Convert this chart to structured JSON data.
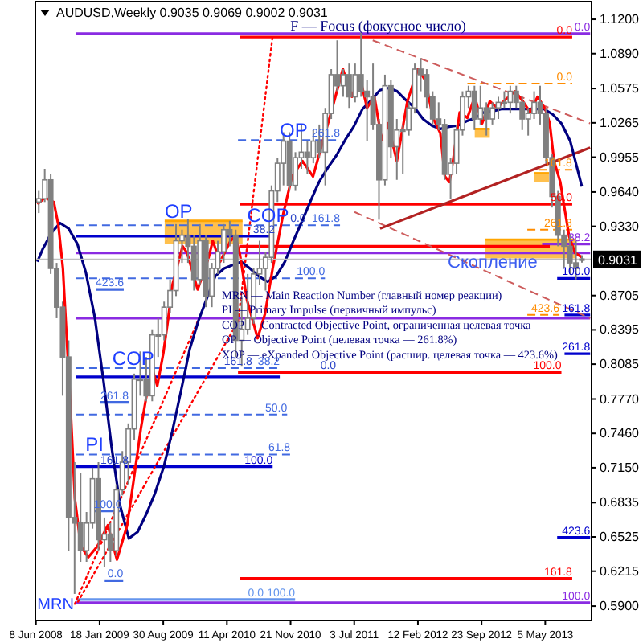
{
  "chart_data": {
    "type": "candlestick",
    "title": "AUDUSD,Weekly 0.9035 0.9069 0.9002 0.9031",
    "color": "#808080",
    "x": [
      "2008-06-18",
      "2008-07-09",
      "2008-07-30",
      "2008-08-20",
      "2008-09-10",
      "2008-10-01",
      "2008-10-22",
      "2008-11-12",
      "2008-12-03",
      "2008-12-24",
      "2009-01-14",
      "2009-02-04",
      "2009-02-25",
      "2009-03-18",
      "2009-04-08",
      "2009-04-29",
      "2009-05-20",
      "2009-06-10",
      "2009-07-01",
      "2009-07-22",
      "2009-08-12",
      "2009-09-02",
      "2009-09-23",
      "2009-10-14",
      "2009-11-04",
      "2009-11-25",
      "2009-12-16",
      "2010-01-06",
      "2010-01-27",
      "2010-02-17",
      "2010-03-10",
      "2010-03-31",
      "2010-04-21",
      "2010-05-12",
      "2010-06-02",
      "2010-06-23",
      "2010-07-14",
      "2010-08-04",
      "2010-08-25",
      "2010-09-15",
      "2010-10-06",
      "2010-10-27",
      "2010-11-17",
      "2010-12-08",
      "2010-12-29",
      "2011-01-19",
      "2011-02-09",
      "2011-03-02",
      "2011-03-23",
      "2011-04-13",
      "2011-05-04",
      "2011-05-25",
      "2011-06-15",
      "2011-07-06",
      "2011-07-27",
      "2011-08-17",
      "2011-09-07",
      "2011-09-28",
      "2011-10-19",
      "2011-11-09",
      "2011-11-30",
      "2011-12-21",
      "2012-01-11",
      "2012-02-01",
      "2012-02-22",
      "2012-03-14",
      "2012-04-04",
      "2012-04-25",
      "2012-05-16",
      "2012-06-06",
      "2012-06-27",
      "2012-07-18",
      "2012-08-08",
      "2012-08-29",
      "2012-09-19",
      "2012-10-10",
      "2012-10-31",
      "2012-11-21",
      "2012-12-12",
      "2013-01-02",
      "2013-01-23",
      "2013-02-13",
      "2013-03-06",
      "2013-03-27",
      "2013-04-17",
      "2013-05-08",
      "2013-05-29",
      "2013-06-19",
      "2013-07-10",
      "2013-07-31",
      "2013-08-21",
      "2013-09-11"
    ],
    "ohlc": [
      [
        0.955,
        0.965,
        0.945,
        0.958
      ],
      [
        0.958,
        0.985,
        0.955,
        0.975
      ],
      [
        0.975,
        0.98,
        0.89,
        0.895
      ],
      [
        0.895,
        0.9,
        0.85,
        0.86
      ],
      [
        0.86,
        0.865,
        0.78,
        0.815
      ],
      [
        0.815,
        0.83,
        0.64,
        0.67
      ],
      [
        0.67,
        0.72,
        0.601,
        0.665
      ],
      [
        0.665,
        0.71,
        0.63,
        0.64
      ],
      [
        0.64,
        0.675,
        0.63,
        0.665
      ],
      [
        0.665,
        0.715,
        0.66,
        0.705
      ],
      [
        0.705,
        0.72,
        0.64,
        0.65
      ],
      [
        0.65,
        0.67,
        0.625,
        0.655
      ],
      [
        0.655,
        0.665,
        0.63,
        0.64
      ],
      [
        0.64,
        0.7,
        0.635,
        0.695
      ],
      [
        0.695,
        0.73,
        0.69,
        0.72
      ],
      [
        0.72,
        0.755,
        0.7,
        0.75
      ],
      [
        0.75,
        0.8,
        0.74,
        0.795
      ],
      [
        0.795,
        0.82,
        0.78,
        0.795
      ],
      [
        0.795,
        0.815,
        0.775,
        0.78
      ],
      [
        0.78,
        0.84,
        0.775,
        0.835
      ],
      [
        0.835,
        0.85,
        0.815,
        0.835
      ],
      [
        0.835,
        0.865,
        0.83,
        0.86
      ],
      [
        0.86,
        0.885,
        0.855,
        0.875
      ],
      [
        0.875,
        0.935,
        0.87,
        0.92
      ],
      [
        0.92,
        0.93,
        0.9,
        0.925
      ],
      [
        0.925,
        0.94,
        0.9,
        0.915
      ],
      [
        0.915,
        0.925,
        0.875,
        0.885
      ],
      [
        0.885,
        0.935,
        0.88,
        0.92
      ],
      [
        0.92,
        0.925,
        0.86,
        0.87
      ],
      [
        0.87,
        0.9,
        0.86,
        0.895
      ],
      [
        0.895,
        0.92,
        0.89,
        0.91
      ],
      [
        0.91,
        0.935,
        0.9,
        0.93
      ],
      [
        0.93,
        0.938,
        0.915,
        0.925
      ],
      [
        0.925,
        0.93,
        0.815,
        0.83
      ],
      [
        0.83,
        0.87,
        0.807,
        0.84
      ],
      [
        0.84,
        0.89,
        0.835,
        0.85
      ],
      [
        0.85,
        0.895,
        0.845,
        0.89
      ],
      [
        0.89,
        0.92,
        0.88,
        0.895
      ],
      [
        0.895,
        0.91,
        0.875,
        0.905
      ],
      [
        0.905,
        0.97,
        0.9,
        0.965
      ],
      [
        0.965,
        0.995,
        0.955,
        0.99
      ],
      [
        0.99,
        1.018,
        0.97,
        1.01
      ],
      [
        1.01,
        1.018,
        0.965,
        0.97
      ],
      [
        0.97,
        1.0,
        0.965,
        0.995
      ],
      [
        0.995,
        1.025,
        0.985,
        1.0
      ],
      [
        1.0,
        1.01,
        0.98,
        0.995
      ],
      [
        0.995,
        1.02,
        0.99,
        1.01
      ],
      [
        1.01,
        1.025,
        0.995,
        1.0
      ],
      [
        1.0,
        1.04,
        0.97,
        1.035
      ],
      [
        1.035,
        1.075,
        1.03,
        1.07
      ],
      [
        1.07,
        1.101,
        1.055,
        1.06
      ],
      [
        1.06,
        1.075,
        1.05,
        1.07
      ],
      [
        1.07,
        1.08,
        1.04,
        1.05
      ],
      [
        1.05,
        1.08,
        1.045,
        1.07
      ],
      [
        1.07,
        1.108,
        1.05,
        1.055
      ],
      [
        1.055,
        1.065,
        1.01,
        1.05
      ],
      [
        1.05,
        1.08,
        1.02,
        1.025
      ],
      [
        1.025,
        1.03,
        0.939,
        0.975
      ],
      [
        0.975,
        1.07,
        0.97,
        1.06
      ],
      [
        1.06,
        1.065,
        0.995,
        1.005
      ],
      [
        1.005,
        1.03,
        0.975,
        1.02
      ],
      [
        1.02,
        1.025,
        0.98,
        1.02
      ],
      [
        1.02,
        1.045,
        1.015,
        1.04
      ],
      [
        1.04,
        1.08,
        1.035,
        1.075
      ],
      [
        1.075,
        1.085,
        1.055,
        1.07
      ],
      [
        1.07,
        1.075,
        1.04,
        1.05
      ],
      [
        1.05,
        1.055,
        1.025,
        1.03
      ],
      [
        1.03,
        1.045,
        1.02,
        1.025
      ],
      [
        1.025,
        1.03,
        0.975,
        0.98
      ],
      [
        0.98,
        0.995,
        0.958,
        0.99
      ],
      [
        0.99,
        1.025,
        0.98,
        1.02
      ],
      [
        1.02,
        1.055,
        1.015,
        1.05
      ],
      [
        1.05,
        1.06,
        1.04,
        1.055
      ],
      [
        1.055,
        1.06,
        1.02,
        1.03
      ],
      [
        1.03,
        1.06,
        1.025,
        1.04
      ],
      [
        1.04,
        1.045,
        1.015,
        1.03
      ],
      [
        1.03,
        1.045,
        1.025,
        1.04
      ],
      [
        1.04,
        1.05,
        1.03,
        1.045
      ],
      [
        1.045,
        1.055,
        1.04,
        1.045
      ],
      [
        1.045,
        1.06,
        1.035,
        1.055
      ],
      [
        1.055,
        1.06,
        1.04,
        1.045
      ],
      [
        1.045,
        1.05,
        1.02,
        1.03
      ],
      [
        1.03,
        1.04,
        1.015,
        1.035
      ],
      [
        1.035,
        1.055,
        1.03,
        1.045
      ],
      [
        1.045,
        1.06,
        1.025,
        1.035
      ],
      [
        1.035,
        1.04,
        0.99,
        0.995
      ],
      [
        0.995,
        0.998,
        0.95,
        0.96
      ],
      [
        0.96,
        0.965,
        0.915,
        0.925
      ],
      [
        0.925,
        0.93,
        0.895,
        0.915
      ],
      [
        0.915,
        0.925,
        0.89,
        0.9
      ],
      [
        0.9,
        0.92,
        0.885,
        0.895
      ],
      [
        0.9035,
        0.9069,
        0.9002,
        0.9031
      ]
    ],
    "series": [
      {
        "type": "line",
        "x": [
          "2009-09-04",
          "2010-06-05"
        ],
        "values": [
          0.938,
          0.938
        ],
        "upper": [
          0.938,
          0.938
        ],
        "lower": [
          0.917,
          0.917
        ],
        "color": "#ffa500",
        "line_style": "solid"
      },
      {
        "type": "line",
        "x": [
          "2012-10-06",
          "2013-08-18"
        ],
        "values": [
          0.921,
          0.921
        ],
        "upper": [
          0.921,
          0.921
        ],
        "lower": [
          0.904,
          0.904
        ],
        "color": "#ffa500",
        "line_style": "solid"
      },
      {
        "type": "line",
        "x": [
          "2012-08-30",
          "2012-10-22"
        ],
        "values": [
          1.021,
          1.021
        ],
        "upper": [
          1.021,
          1.021
        ],
        "lower": [
          1.013,
          1.013
        ],
        "color": "#ffa500",
        "line_style": "solid"
      },
      {
        "type": "line",
        "x": [
          "2013-03-28",
          "2013-05-18"
        ],
        "values": [
          0.981,
          0.981
        ],
        "upper": [
          0.981,
          0.981
        ],
        "lower": [
          0.973,
          0.973
        ],
        "color": "#ffa500",
        "line_style": "solid"
      },
      {
        "type": "line",
        "x": [
          "2008-10-28",
          "2013-10-10"
        ],
        "values": [
          1.107,
          1.107
        ],
        "color": "#8a2be2",
        "line_style": "solid"
      },
      {
        "type": "line",
        "x": [
          "2010-05-26",
          "2013-08-08"
        ],
        "values": [
          1.104,
          1.104
        ],
        "color": "#ff0000",
        "line_style": "solid"
      },
      {
        "type": "line",
        "x": [
          "2012-08-04",
          "2013-08-08"
        ],
        "values": [
          1.062,
          1.062
        ],
        "color": "#ff8c00",
        "line_style": "dashed"
      },
      {
        "type": "line",
        "x": [
          "2010-05-20",
          "2011-05-14"
        ],
        "values": [
          1.011,
          1.011
        ],
        "color": "#4169e1",
        "line_style": "dashed"
      },
      {
        "type": "line",
        "x": [
          "2013-04-14",
          "2013-08-08"
        ],
        "values": [
          0.984,
          0.984
        ],
        "color": "#ff8c00",
        "line_style": "dashed"
      },
      {
        "type": "line",
        "x": [
          "2010-05-26",
          "2013-08-08"
        ],
        "values": [
          0.953,
          0.953
        ],
        "color": "#ff0000",
        "line_style": "solid"
      },
      {
        "type": "line",
        "x": [
          "2008-10-28",
          "2011-05-14"
        ],
        "values": [
          0.934,
          0.934
        ],
        "color": "#4169e1",
        "line_style": "dashed"
      },
      {
        "type": "line",
        "x": [
          "2013-03-03",
          "2013-08-08"
        ],
        "values": [
          0.93,
          0.93
        ],
        "color": "#ff8c00",
        "line_style": "dashed"
      },
      {
        "type": "line",
        "x": [
          "2008-10-28",
          "2010-09-19"
        ],
        "values": [
          0.924,
          0.924
        ],
        "color": "#0000cd",
        "line_style": "solid"
      },
      {
        "type": "line",
        "x": [
          "2013-04-24",
          "2013-10-10"
        ],
        "values": [
          0.917,
          0.917
        ],
        "color": "#8a2be2",
        "line_style": "solid"
      },
      {
        "type": "line",
        "x": [
          "2010-05-26",
          "2013-05-21"
        ],
        "values": [
          0.915,
          0.915
        ],
        "color": "#ff0000",
        "line_style": "solid"
      },
      {
        "type": "line",
        "x": [
          "2008-10-28",
          "2013-10-10"
        ],
        "values": [
          0.909,
          0.909
        ],
        "color": "#8a2be2",
        "line_style": "solid"
      },
      {
        "type": "line",
        "x": [
          "2008-10-28",
          "2011-03-22"
        ],
        "values": [
          0.886,
          0.886
        ],
        "color": "#4169e1",
        "line_style": "dashed"
      },
      {
        "type": "line",
        "x": [
          "2013-06-16",
          "2013-10-10"
        ],
        "values": [
          0.886,
          0.886
        ],
        "color": "#0000cd",
        "line_style": "solid"
      },
      {
        "type": "line",
        "x": [
          "2008-10-28",
          "2013-10-10"
        ],
        "values": [
          0.85,
          0.85
        ],
        "color": "#8a2be2",
        "line_style": "solid"
      },
      {
        "type": "line",
        "x": [
          "2013-03-03",
          "2013-06-24"
        ],
        "values": [
          0.853,
          0.853
        ],
        "color": "#ff8c00",
        "line_style": "dashed"
      },
      {
        "type": "line",
        "x": [
          "2013-07-12",
          "2013-10-10"
        ],
        "values": [
          0.853,
          0.853
        ],
        "color": "#0000cd",
        "line_style": "solid"
      },
      {
        "type": "line",
        "x": [
          "2013-07-12",
          "2013-10-10"
        ],
        "values": [
          0.818,
          0.818
        ],
        "color": "#0000cd",
        "line_style": "solid"
      },
      {
        "type": "line",
        "x": [
          "2008-10-28",
          "2010-10-14"
        ],
        "values": [
          0.805,
          0.805
        ],
        "color": "#4169e1",
        "line_style": "dashed"
      },
      {
        "type": "line",
        "x": [
          "2008-10-28",
          "2010-10-14"
        ],
        "values": [
          0.797,
          0.797
        ],
        "color": "#0000cd",
        "line_style": "solid"
      },
      {
        "type": "line",
        "x": [
          "2010-05-20",
          "2013-07-01"
        ],
        "values": [
          0.801,
          0.801
        ],
        "color": "#ff0000",
        "line_style": "solid"
      },
      {
        "type": "line",
        "x": [
          "2008-10-28",
          "2010-11-09"
        ],
        "values": [
          0.763,
          0.763
        ],
        "color": "#4169e1",
        "line_style": "dashed"
      },
      {
        "type": "line",
        "x": [
          "2008-10-28",
          "2010-11-20"
        ],
        "values": [
          0.727,
          0.727
        ],
        "color": "#4169e1",
        "line_style": "dashed"
      },
      {
        "type": "line",
        "x": [
          "2008-10-28",
          "2010-09-19"
        ],
        "values": [
          0.716,
          0.716
        ],
        "color": "#0000cd",
        "line_style": "solid"
      },
      {
        "type": "line",
        "x": [
          "2013-06-16",
          "2013-10-10"
        ],
        "values": [
          0.652,
          0.652
        ],
        "color": "#0000cd",
        "line_style": "solid"
      },
      {
        "type": "line",
        "x": [
          "2010-05-26",
          "2013-08-08"
        ],
        "values": [
          0.615,
          0.615
        ],
        "color": "#ff0000",
        "line_style": "solid"
      },
      {
        "type": "line",
        "x": [
          "2008-10-28",
          "2013-10-10"
        ],
        "values": [
          0.593,
          0.593
        ],
        "color": "#8a2be2",
        "line_style": "solid"
      },
      {
        "type": "line",
        "x": [
          "2008-10-28",
          "2010-08-18",
          "2010-12-07"
        ],
        "values": [
          0.596,
          0.596,
          0.596
        ],
        "color": "#6495ed",
        "line_style": "solid"
      },
      {
        "type": "line",
        "x": [
          "2009-01-05",
          "2009-04-13"
        ],
        "values": [
          0.876,
          0.876
        ],
        "color": "#4169e1",
        "line_style": "solid"
      },
      {
        "type": "line",
        "x": [
          "2009-01-21",
          "2009-04-30"
        ],
        "values": [
          0.774,
          0.774
        ],
        "color": "#4169e1",
        "line_style": "solid"
      },
      {
        "type": "line",
        "x": [
          "2008-12-25",
          "2009-04-06"
        ],
        "values": [
          0.676,
          0.676
        ],
        "color": "#4169e1",
        "line_style": "solid"
      },
      {
        "type": "line",
        "x": [
          "2009-02-05",
          "2009-04-11"
        ],
        "values": [
          0.613,
          0.613
        ],
        "color": "#4169e1",
        "line_style": "solid"
      },
      {
        "type": "line",
        "x": [
          "2011-09-06",
          "2013-10-10"
        ],
        "values": [
          1.101,
          1.026
        ],
        "color": "#cd5c5c",
        "line_style": "dashed"
      },
      {
        "type": "line",
        "x": [
          "2011-07-04",
          "2013-10-10"
        ],
        "values": [
          0.946,
          0.85
        ],
        "color": "#cd5c5c",
        "line_style": "dashed"
      },
      {
        "type": "line",
        "x": [
          "2011-10-02",
          "2013-10-10"
        ],
        "values": [
          0.931,
          1.004
        ],
        "color": "#b22222",
        "line_style": "solid"
      },
      {
        "type": "line",
        "x": [
          "2008-10-23",
          "2009-12-29"
        ],
        "values": [
          0.592,
          0.847
        ],
        "color": "#ff0000",
        "line_style": "dotted"
      },
      {
        "type": "line",
        "x": [
          "2008-11-03",
          "2010-05-20",
          "2010-09-19"
        ],
        "values": [
          0.594,
          0.847,
          1.105
        ],
        "color": "#ff0000",
        "line_style": "dotted"
      },
      {
        "type": "line",
        "x": [
          "2008-06-13",
          "2008-07-01",
          "2008-08-01",
          "2008-09-01",
          "2008-10-01",
          "2008-11-01",
          "2008-12-01",
          "2009-01-01",
          "2009-02-01",
          "2009-03-01",
          "2009-04-01",
          "2009-05-01",
          "2009-06-01",
          "2009-07-01",
          "2009-08-01",
          "2009-09-01",
          "2009-10-01",
          "2009-11-01",
          "2009-12-01",
          "2010-01-01",
          "2010-02-01",
          "2010-03-01",
          "2010-04-01",
          "2010-05-01",
          "2010-06-01",
          "2010-07-01",
          "2010-08-01",
          "2010-09-01",
          "2010-10-01",
          "2010-11-01",
          "2010-12-01",
          "2011-01-01",
          "2011-02-01",
          "2011-03-01",
          "2011-04-01",
          "2011-05-01",
          "2011-06-01",
          "2011-07-01",
          "2011-08-01",
          "2011-09-01",
          "2011-10-01",
          "2011-11-01",
          "2011-12-01",
          "2012-01-01",
          "2012-02-01",
          "2012-03-01",
          "2012-04-01",
          "2012-05-01",
          "2012-06-01",
          "2012-07-01",
          "2012-08-01",
          "2012-09-01",
          "2012-10-01",
          "2012-11-01",
          "2012-12-01",
          "2013-01-01",
          "2013-02-01",
          "2013-03-01",
          "2013-04-01",
          "2013-05-01",
          "2013-06-01",
          "2013-07-01",
          "2013-08-01",
          "2013-09-11"
        ],
        "values": [
          0.901,
          0.912,
          0.927,
          0.936,
          0.931,
          0.917,
          0.891,
          0.851,
          0.793,
          0.734,
          0.68,
          0.651,
          0.657,
          0.673,
          0.692,
          0.716,
          0.748,
          0.785,
          0.822,
          0.848,
          0.869,
          0.888,
          0.895,
          0.898,
          0.901,
          0.895,
          0.888,
          0.883,
          0.888,
          0.901,
          0.92,
          0.938,
          0.957,
          0.973,
          0.986,
          0.997,
          1.011,
          1.023,
          1.039,
          1.047,
          1.056,
          1.058,
          1.055,
          1.047,
          1.04,
          1.03,
          1.024,
          1.021,
          1.023,
          1.024,
          1.028,
          1.031,
          1.036,
          1.037,
          1.039,
          1.039,
          1.039,
          1.039,
          1.039,
          1.039,
          1.034,
          1.026,
          1.01,
          0.969
        ],
        "color": "#000080",
        "line_style": "solid"
      },
      {
        "type": "line",
        "x": [
          "2008-06-13",
          "2008-07-10",
          "2008-08-10",
          "2008-08-26",
          "2008-09-11",
          "2008-09-21",
          "2008-10-07",
          "2008-10-23",
          "2008-11-13",
          "2008-12-09",
          "2009-01-10",
          "2009-02-16",
          "2009-03-20",
          "2009-04-25",
          "2009-05-17",
          "2009-06-12",
          "2009-07-08",
          "2009-07-24",
          "2009-08-09",
          "2009-08-30",
          "2009-09-15",
          "2009-10-01",
          "2009-11-06",
          "2009-11-22",
          "2009-12-29",
          "2010-02-06",
          "2010-02-20",
          "2010-03-18",
          "2010-04-24",
          "2010-05-10",
          "2010-05-26",
          "2010-06-21",
          "2010-07-12",
          "2010-07-28",
          "2010-08-23",
          "2010-09-19",
          "2010-10-26",
          "2010-11-26",
          "2011-01-02",
          "2011-02-08",
          "2011-03-06",
          "2011-04-17",
          "2011-05-24",
          "2011-06-25",
          "2011-07-22",
          "2011-08-17",
          "2011-09-12",
          "2011-10-08",
          "2011-10-29",
          "2011-11-30",
          "2012-01-06",
          "2012-02-12",
          "2012-03-09",
          "2012-04-05",
          "2012-05-01",
          "2012-05-17",
          "2012-06-02",
          "2012-06-16",
          "2012-07-08",
          "2012-08-04",
          "2012-08-30",
          "2012-09-25",
          "2012-10-22",
          "2012-11-17",
          "2012-12-14",
          "2013-01-19",
          "2013-02-15",
          "2013-03-13",
          "2013-04-08",
          "2013-05-05",
          "2013-05-21",
          "2013-06-05",
          "2013-06-27",
          "2013-07-12",
          "2013-07-28",
          "2013-08-18",
          "2013-09-11"
        ],
        "values": [
          0.953,
          0.959,
          0.955,
          0.934,
          0.895,
          0.847,
          0.774,
          0.687,
          0.644,
          0.634,
          0.644,
          0.663,
          0.632,
          0.663,
          0.702,
          0.75,
          0.789,
          0.803,
          0.789,
          0.818,
          0.847,
          0.88,
          0.915,
          0.909,
          0.876,
          0.905,
          0.92,
          0.901,
          0.92,
          0.924,
          0.909,
          0.866,
          0.847,
          0.832,
          0.854,
          0.895,
          0.944,
          0.978,
          0.992,
          0.978,
          1.002,
          1.04,
          1.075,
          1.05,
          1.069,
          1.04,
          1.05,
          1.011,
          1.026,
          0.992,
          1.046,
          1.075,
          1.065,
          1.031,
          1.017,
          0.978,
          0.973,
          0.995,
          1.036,
          1.031,
          1.05,
          1.026,
          1.046,
          1.04,
          1.047,
          1.055,
          1.046,
          1.036,
          1.05,
          1.039,
          1.026,
          0.992,
          0.973,
          0.949,
          0.924,
          0.909,
          0.905
        ],
        "color": "#ff0000",
        "line_style": "solid"
      }
    ],
    "xlim": [
      "2008-06-06",
      "2013-10-15"
    ],
    "xticks": [
      {
        "value": "2008-06-08",
        "label": "8 Jun 2008"
      },
      {
        "value": "2009-01-18",
        "label": "18 Jan 2009"
      },
      {
        "value": "2009-08-30",
        "label": "30 Aug 2009"
      },
      {
        "value": "2010-04-11",
        "label": "11 Apr 2010"
      },
      {
        "value": "2010-11-21",
        "label": "21 Nov 2010"
      },
      {
        "value": "2011-07-03",
        "label": "3 Jul 2011"
      },
      {
        "value": "2012-02-12",
        "label": "12 Feb 2012"
      },
      {
        "value": "2012-09-23",
        "label": "23 Sep 2012"
      },
      {
        "value": "2013-05-05",
        "label": "5 May 2013"
      }
    ],
    "ylim": [
      0.577,
      1.136
    ],
    "yticks": [
      {
        "value": 0.59,
        "label": "0.5900"
      },
      0.6215,
      0.6525,
      0.6835,
      {
        "value": 0.715,
        "label": "0.7150"
      },
      {
        "value": 0.746,
        "label": "0.7460"
      },
      {
        "value": 0.777,
        "label": "0.7770"
      },
      0.8085,
      0.8395,
      0.8705,
      {
        "value": 0.933,
        "label": "0.9330"
      },
      {
        "value": 0.964,
        "label": "0.9640"
      },
      0.9955,
      1.0265,
      1.0575,
      {
        "value": 1.089,
        "label": "1.0890"
      },
      {
        "value": 1.12,
        "label": "1.1200"
      }
    ],
    "ref_lines": [
      {
        "axis": "y",
        "value": 0.9031,
        "label": "0.9031",
        "color": "#c0c0c0"
      }
    ],
    "annotations": [
      {
        "text": "F — Focus (фокусное число)",
        "x": "2010-11-20",
        "y": 1.107
      },
      {
        "text": "OP",
        "x": "2009-09-04",
        "y": 0.938
      },
      {
        "text": "OP",
        "x": "2010-10-14",
        "y": 1.011
      },
      {
        "text": "COP",
        "x": "2010-06-21",
        "y": 0.934
      },
      {
        "text": "COP",
        "x": "2009-03-04",
        "y": 0.805
      },
      {
        "text": "PI",
        "x": "2008-11-29",
        "y": 0.727
      },
      {
        "text": "MRN",
        "x": "2008-10-28",
        "y": 0.593
      },
      {
        "text": "Скопление",
        "x": "2012-05-27",
        "y": 0.896
      },
      "MRN — Main Reaction Number (главный номер реакции)",
      "PI — Primary Impulse (первичный импульс)",
      "COP — Contracted Objective Point, ограниченная целевая точка",
      "OP — Objective Point (целевая точка — 261.8%)",
      "XOP — eXpanded Objective Point (расшир. целевая точка — 423.6%)",
      {
        "text": "423.6",
        "x": "2009-04-13",
        "y": 0.876
      },
      {
        "text": "261.8",
        "x": "2009-04-30",
        "y": 0.774
      },
      {
        "text": "161.8",
        "x": "2009-01-21",
        "y": 0.716
      },
      {
        "text": "100.0",
        "x": "2009-04-06",
        "y": 0.676
      },
      {
        "text": "0.0",
        "x": "2009-04-11",
        "y": 0.613
      },
      {
        "text": "161.8",
        "x": "2010-04-01",
        "y": 0.805
      },
      {
        "text": "0.0",
        "x": "2011-03-06",
        "y": 0.801
      },
      {
        "text": "0.0",
        "x": "2010-11-20",
        "y": 0.934
      },
      {
        "text": "38.2",
        "x": "2010-07-12",
        "y": 0.924
      },
      {
        "text": "0.0",
        "x": "2013-10-10",
        "y": 1.107
      },
      {
        "text": "0.0",
        "x": "2013-08-08",
        "y": 1.104
      },
      {
        "text": "0.0",
        "x": "2013-08-08",
        "y": 1.062
      },
      {
        "text": "261.8",
        "x": "2011-05-14",
        "y": 1.011
      },
      {
        "text": "161.8",
        "x": "2013-08-08",
        "y": 0.984
      },
      {
        "text": "50.0",
        "x": "2013-08-08",
        "y": 0.953
      },
      {
        "text": "161.8",
        "x": "2011-05-14",
        "y": 0.934
      },
      {
        "text": "261.8",
        "x": "2013-08-08",
        "y": 0.93
      },
      {
        "text": "38.2",
        "x": "2013-10-10",
        "y": 0.917
      },
      {
        "text": "100.0",
        "x": "2011-03-22",
        "y": 0.886
      },
      {
        "text": "100.0",
        "x": "2013-10-10",
        "y": 0.886
      },
      {
        "text": "423.6",
        "x": "2013-06-24",
        "y": 0.853
      },
      {
        "text": "161.8",
        "x": "2013-10-10",
        "y": 0.853
      },
      {
        "text": "261.8",
        "x": "2013-10-10",
        "y": 0.818
      },
      {
        "text": "38.2",
        "x": "2010-10-14",
        "y": 0.805
      },
      {
        "text": "100.0",
        "x": "2013-07-01",
        "y": 0.801
      },
      {
        "text": "50.0",
        "x": "2010-11-09",
        "y": 0.763
      },
      {
        "text": "61.8",
        "x": "2010-11-20",
        "y": 0.727
      },
      {
        "text": "100.0",
        "x": "2010-09-19",
        "y": 0.716
      },
      {
        "text": "423.6",
        "x": "2013-10-10",
        "y": 0.652
      },
      {
        "text": "161.8",
        "x": "2013-08-08",
        "y": 0.615
      },
      {
        "text": "100.0",
        "x": "2013-10-10",
        "y": 0.593
      },
      {
        "text": "0.0",
        "x": "2010-08-18",
        "y": 0.596
      },
      {
        "text": "100.0",
        "x": "2010-12-07",
        "y": 0.596
      }
    ]
  }
}
